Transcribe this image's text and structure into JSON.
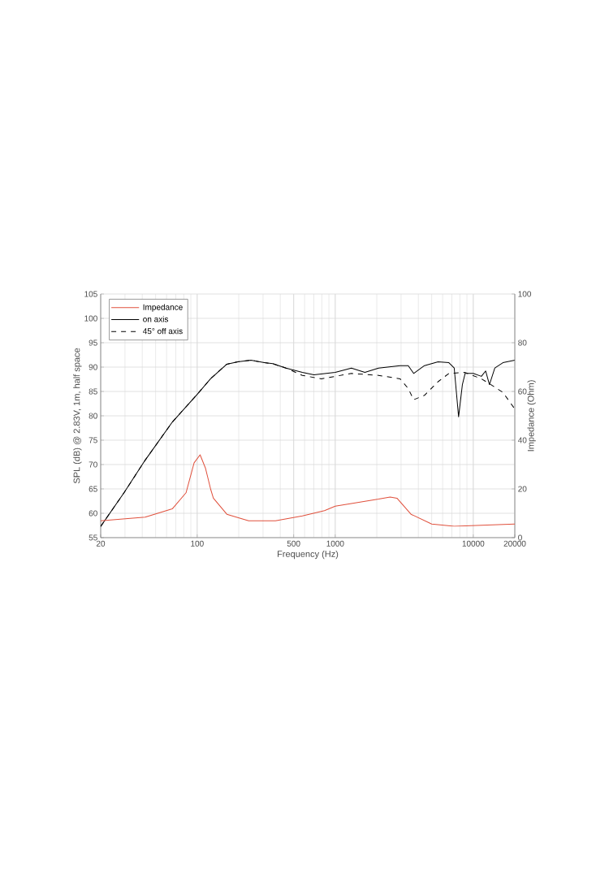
{
  "chart_data": {
    "type": "line",
    "xlabel": "Frequency (Hz)",
    "ylabel": "SPL (dB) @ 2.83V, 1m, half space",
    "y2label": "Impedance (Ohm)",
    "log": "x",
    "grid": true,
    "legend": "top left",
    "xlim": [
      20,
      20000
    ],
    "xticks": [
      20,
      100,
      500,
      1000,
      10000,
      20000
    ],
    "ylim": [
      55,
      105
    ],
    "yticks": [
      55,
      60,
      65,
      70,
      75,
      80,
      85,
      90,
      95,
      100,
      105
    ],
    "y2lim": [
      0,
      100
    ],
    "y2ticks": [
      0,
      20,
      40,
      60,
      80,
      100
    ],
    "series": [
      {
        "name": "Impedance",
        "color": "#e0503c",
        "axis": "y2",
        "line_style": "solid",
        "x": [
          20,
          42,
          66,
          83,
          95,
          105,
          115,
          125,
          131,
          164,
          236,
          369,
          578,
          836,
          1000,
          1310,
          2060,
          2500,
          2800,
          3540,
          5000,
          7280,
          20000
        ],
        "values": [
          6.9,
          8.4,
          11.8,
          18.4,
          30.7,
          34,
          28.4,
          20,
          16.2,
          9.6,
          6.9,
          6.9,
          8.9,
          11.1,
          12.9,
          14,
          15.8,
          16.7,
          16.2,
          9.6,
          5.6,
          4.7,
          5.6
        ]
      },
      {
        "name": "on axis",
        "color": "#000000",
        "line_style": "solid",
        "x": [
          20,
          29.5,
          42,
          66,
          100,
          125,
          164,
          197,
          245,
          307,
          353,
          440,
          578,
          701,
          1000,
          1310,
          1640,
          2060,
          2950,
          3380,
          3700,
          4430,
          5560,
          6660,
          7280,
          7830,
          8340,
          8730,
          10000,
          11450,
          12300,
          13100,
          14330,
          16400,
          20000
        ],
        "values": [
          57.3,
          64.2,
          70.9,
          78.7,
          84.4,
          87.6,
          90.6,
          91.1,
          91.4,
          90.9,
          90.7,
          89.8,
          88.9,
          88.4,
          88.9,
          89.8,
          88.9,
          89.8,
          90.3,
          90.3,
          88.7,
          90.3,
          91.1,
          90.9,
          89.8,
          79.8,
          86.4,
          88.7,
          88.7,
          88.1,
          89.2,
          86.4,
          89.8,
          90.9,
          91.4
        ]
      },
      {
        "name": "45° off axis",
        "color": "#000000",
        "line_style": "dashed",
        "x": [
          20,
          29.5,
          42,
          66,
          100,
          125,
          164,
          197,
          245,
          307,
          353,
          440,
          578,
          794,
          1000,
          1310,
          2060,
          2950,
          3380,
          3700,
          4430,
          5560,
          6660,
          8730,
          11450,
          14330,
          16400,
          20000
        ],
        "values": [
          57.3,
          64.2,
          70.9,
          78.7,
          84.4,
          87.6,
          90.6,
          91.1,
          91.4,
          90.9,
          90.7,
          89.8,
          88.3,
          87.6,
          88.1,
          88.7,
          88.3,
          87.6,
          85.6,
          83.3,
          84.2,
          87.0,
          88.7,
          88.9,
          87.6,
          85.9,
          84.8,
          81.4
        ]
      }
    ]
  }
}
